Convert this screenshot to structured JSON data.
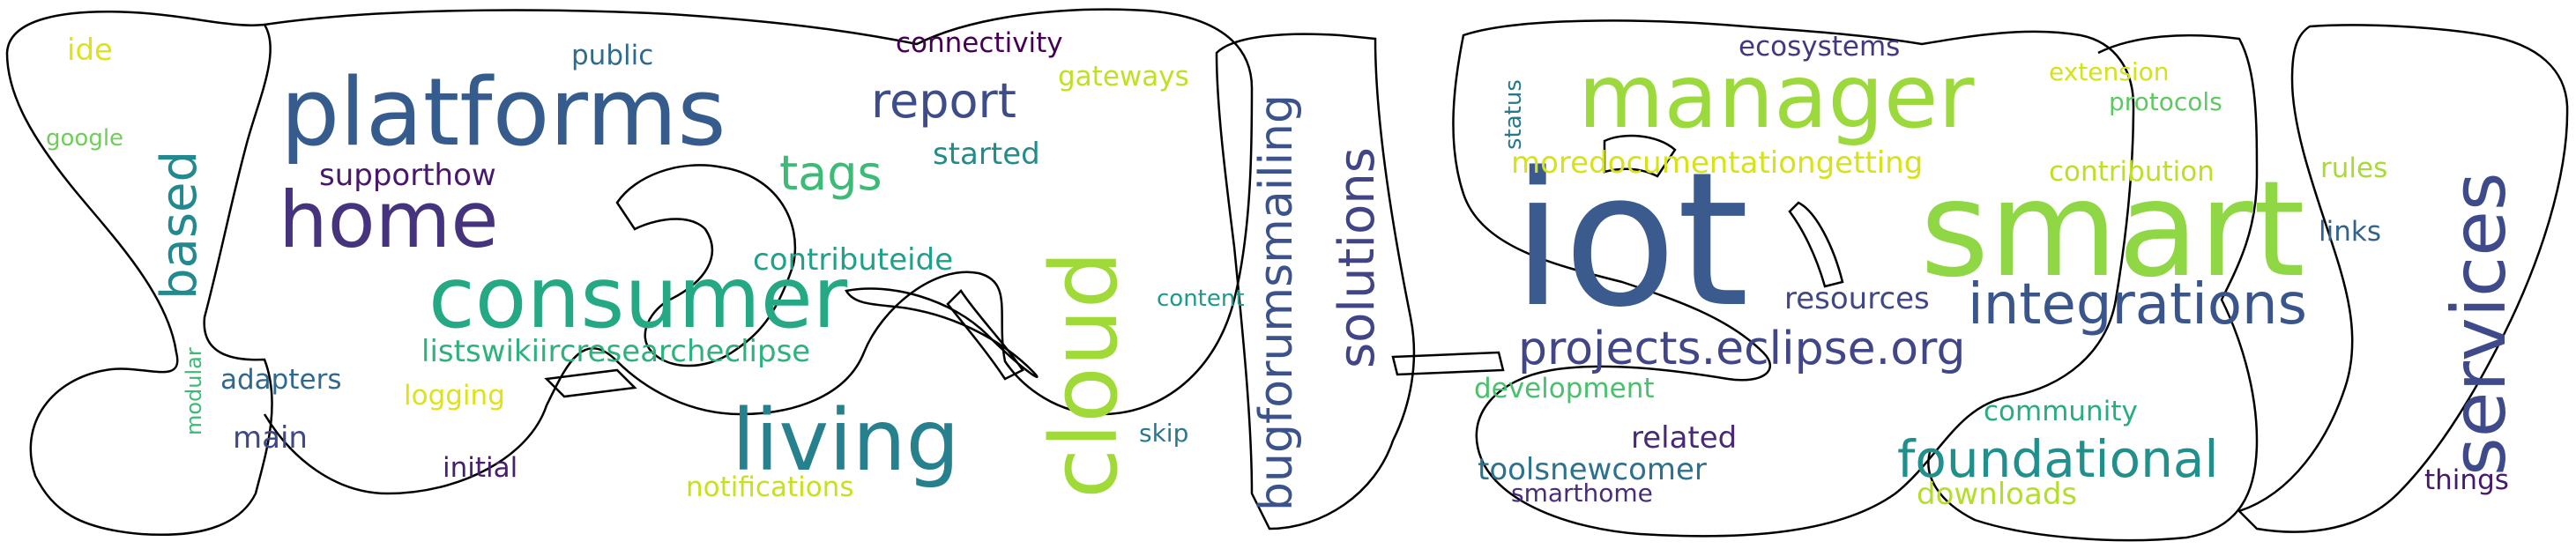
{
  "words": {
    "iot": {
      "text": "iot",
      "color": "#3b5a8e"
    },
    "smart": {
      "text": "smart",
      "color": "#8fd744"
    },
    "platforms": {
      "text": "platforms",
      "color": "#365c8d"
    },
    "consumer": {
      "text": "consumer",
      "color": "#25a884"
    },
    "home": {
      "text": "home",
      "color": "#46337e"
    },
    "living": {
      "text": "living",
      "color": "#27808e"
    },
    "cloud": {
      "text": "cloud",
      "color": "#a0da39"
    },
    "manager": {
      "text": "manager",
      "color": "#9bd93c"
    },
    "services": {
      "text": "services",
      "color": "#3f4a8a"
    },
    "integrations": {
      "text": "integrations",
      "color": "#39558c"
    },
    "foundational": {
      "text": "foundational",
      "color": "#21908d"
    },
    "solutions": {
      "text": "solutions",
      "color": "#414487"
    },
    "bugforumsmailing": {
      "text": "bugforumsmailing",
      "color": "#3b528b"
    },
    "projects": {
      "text": "projects.eclipse.org",
      "color": "#404688"
    },
    "report": {
      "text": "report",
      "color": "#3e4c8a"
    },
    "tags": {
      "text": "tags",
      "color": "#3bbb75"
    },
    "based": {
      "text": "based",
      "color": "#23898e"
    },
    "listswiki": {
      "text": "listswikiircresearcheclipse",
      "color": "#2db27d"
    },
    "contributeide": {
      "text": "contributeide",
      "color": "#1fa088"
    },
    "supporthow": {
      "text": "supporthow",
      "color": "#48186a"
    },
    "started": {
      "text": "started",
      "color": "#228c8d"
    },
    "gateways": {
      "text": "gateways",
      "color": "#c2df23"
    },
    "connectivity": {
      "text": "connectivity",
      "color": "#440154"
    },
    "public": {
      "text": "public",
      "color": "#306a8e"
    },
    "ide": {
      "text": "ide",
      "color": "#dde318"
    },
    "google": {
      "text": "google",
      "color": "#6ece58"
    },
    "adapters": {
      "text": "adapters",
      "color": "#31688e"
    },
    "modular": {
      "text": "modular",
      "color": "#3bbb75"
    },
    "main": {
      "text": "main",
      "color": "#3e4989"
    },
    "logging": {
      "text": "logging",
      "color": "#dde318"
    },
    "initial": {
      "text": "initial",
      "color": "#481f70"
    },
    "notifications": {
      "text": "notifications",
      "color": "#c8e020"
    },
    "skip": {
      "text": "skip",
      "color": "#2a788e"
    },
    "content": {
      "text": "content",
      "color": "#1f9a8a"
    },
    "status": {
      "text": "status",
      "color": "#2a788e"
    },
    "ecosystems": {
      "text": "ecosystems",
      "color": "#453781"
    },
    "moredocumentation": {
      "text": "moredocumentationgetting",
      "color": "#d8e219"
    },
    "resources": {
      "text": "resources",
      "color": "#3f4788"
    },
    "development": {
      "text": "development",
      "color": "#4ac16d"
    },
    "related": {
      "text": "related",
      "color": "#482878"
    },
    "toolsnewcomer": {
      "text": "toolsnewcomer",
      "color": "#2c728e"
    },
    "smarthome": {
      "text": "smarthome",
      "color": "#472d7b"
    },
    "downloads": {
      "text": "downloads",
      "color": "#b5de2b"
    },
    "community": {
      "text": "community",
      "color": "#26ad81"
    },
    "extension": {
      "text": "extension",
      "color": "#d2e21b"
    },
    "protocols": {
      "text": "protocols",
      "color": "#5ec962"
    },
    "contribution": {
      "text": "contribution",
      "color": "#bddf26"
    },
    "rules": {
      "text": "rules",
      "color": "#a8db34"
    },
    "links": {
      "text": "links",
      "color": "#33638d"
    },
    "things": {
      "text": "things",
      "color": "#48186a"
    }
  },
  "outline_color": "#000000"
}
